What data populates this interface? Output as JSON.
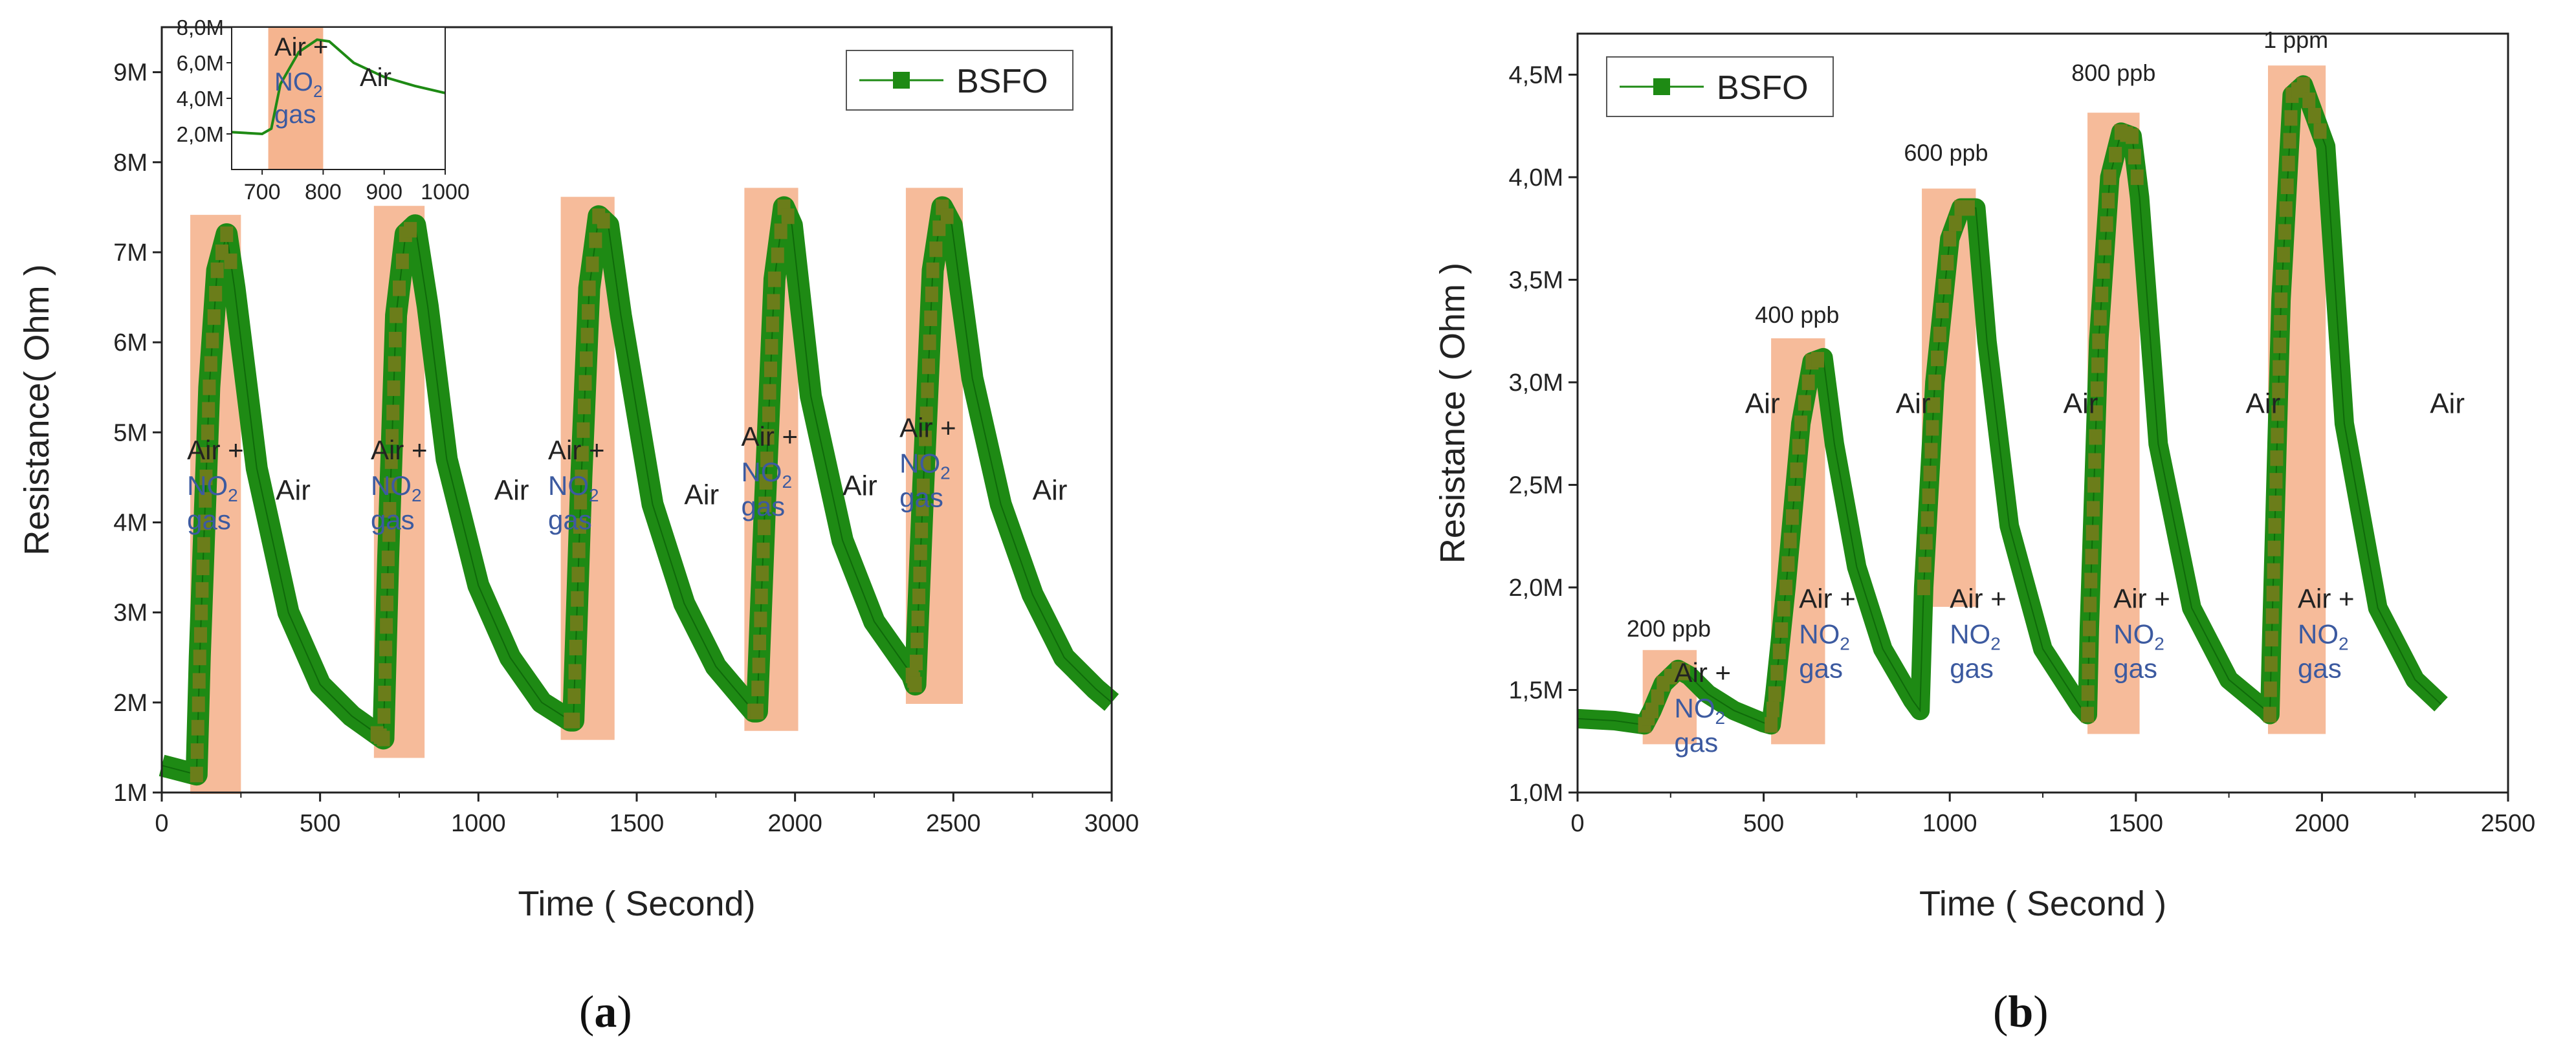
{
  "panels": [
    {
      "id": "a",
      "label_open": "(",
      "label_letter": "a",
      "label_close": ")",
      "chart_data": {
        "type": "line",
        "xlabel": "Time ( Second)",
        "ylabel": "Resistance( Ohm )",
        "xlim": [
          0,
          3000
        ],
        "ylim": [
          1000000,
          9500000
        ],
        "x_ticks": [
          0,
          500,
          1000,
          1500,
          2000,
          2500,
          3000
        ],
        "x_tick_labels": [
          "0",
          "500",
          "1000",
          "1500",
          "2000",
          "2500",
          "3000"
        ],
        "y_ticks": [
          1000000,
          2000000,
          3000000,
          4000000,
          5000000,
          6000000,
          7000000,
          8000000,
          9000000
        ],
        "y_tick_labels": [
          "1M",
          "2M",
          "3M",
          "4M",
          "5M",
          "6M",
          "7M",
          "8M",
          "9M"
        ],
        "legend": {
          "label": "BSFO",
          "position": "top-right"
        },
        "series": [
          {
            "name": "BSFO",
            "color": "#1e8a14",
            "points": [
              [
                0,
                1300000
              ],
              [
                110,
                1200000
              ],
              [
                120,
                2500000
              ],
              [
                150,
                5500000
              ],
              [
                175,
                6800000
              ],
              [
                205,
                7200000
              ],
              [
                230,
                6600000
              ],
              [
                300,
                4600000
              ],
              [
                400,
                3000000
              ],
              [
                500,
                2200000
              ],
              [
                600,
                1850000
              ],
              [
                680,
                1650000
              ],
              [
                700,
                1600000
              ],
              [
                715,
                3600000
              ],
              [
                740,
                6300000
              ],
              [
                770,
                7200000
              ],
              [
                800,
                7300000
              ],
              [
                840,
                6400000
              ],
              [
                900,
                4700000
              ],
              [
                1000,
                3300000
              ],
              [
                1100,
                2500000
              ],
              [
                1200,
                2000000
              ],
              [
                1290,
                1800000
              ],
              [
                1300,
                1800000
              ],
              [
                1325,
                4500000
              ],
              [
                1350,
                6600000
              ],
              [
                1380,
                7400000
              ],
              [
                1410,
                7300000
              ],
              [
                1450,
                6300000
              ],
              [
                1550,
                4200000
              ],
              [
                1650,
                3100000
              ],
              [
                1750,
                2400000
              ],
              [
                1870,
                1900000
              ],
              [
                1880,
                1900000
              ],
              [
                1905,
                4200000
              ],
              [
                1935,
                6700000
              ],
              [
                1965,
                7500000
              ],
              [
                1990,
                7300000
              ],
              [
                2050,
                5400000
              ],
              [
                2150,
                3800000
              ],
              [
                2250,
                2900000
              ],
              [
                2370,
                2300000
              ],
              [
                2380,
                2200000
              ],
              [
                2405,
                4400000
              ],
              [
                2435,
                6800000
              ],
              [
                2465,
                7500000
              ],
              [
                2495,
                7300000
              ],
              [
                2560,
                5600000
              ],
              [
                2650,
                4200000
              ],
              [
                2750,
                3200000
              ],
              [
                2850,
                2500000
              ],
              [
                2950,
                2150000
              ],
              [
                3000,
                2000000
              ]
            ]
          }
        ],
        "gas_windows": [
          [
            90,
            250
          ],
          [
            670,
            830
          ],
          [
            1260,
            1430
          ],
          [
            1840,
            2010
          ],
          [
            2350,
            2530
          ]
        ],
        "annotations": [
          {
            "text_top": "Air +",
            "formula_main": "NO",
            "formula_sub": "2",
            "text_bottom": "gas",
            "x": 80,
            "y": 4700000
          },
          {
            "text": "Air",
            "x": 360,
            "y": 4250000
          },
          {
            "text_top": "Air +",
            "formula_main": "NO",
            "formula_sub": "2",
            "text_bottom": "gas",
            "x": 660,
            "y": 4700000
          },
          {
            "text": "Air",
            "x": 1050,
            "y": 4250000
          },
          {
            "text_top": "Air +",
            "formula_main": "NO",
            "formula_sub": "2",
            "text_bottom": "gas",
            "x": 1220,
            "y": 4700000
          },
          {
            "text": "Air",
            "x": 1650,
            "y": 4200000
          },
          {
            "text_top": "Air +",
            "formula_main": "NO",
            "formula_sub": "2",
            "text_bottom": "gas",
            "x": 1830,
            "y": 4850000
          },
          {
            "text": "Air",
            "x": 2150,
            "y": 4300000
          },
          {
            "text_top": "Air +",
            "formula_main": "NO",
            "formula_sub": "2",
            "text_bottom": "gas",
            "x": 2330,
            "y": 4950000
          },
          {
            "text": "Air",
            "x": 2750,
            "y": 4250000
          }
        ],
        "inset": {
          "type": "line",
          "xlim": [
            650,
            1000
          ],
          "ylim": [
            0,
            8000000
          ],
          "x_ticks": [
            700,
            800,
            900,
            1000
          ],
          "x_tick_labels": [
            "700",
            "800",
            "900",
            "1000"
          ],
          "y_ticks": [
            2000000,
            4000000,
            6000000,
            8000000
          ],
          "y_tick_labels": [
            "2,0M",
            "4,0M",
            "6,0M",
            "8,0M"
          ],
          "gas_window": [
            710,
            800
          ],
          "points": [
            [
              650,
              2100000
            ],
            [
              700,
              2000000
            ],
            [
              715,
              2300000
            ],
            [
              730,
              4800000
            ],
            [
              760,
              6600000
            ],
            [
              790,
              7300000
            ],
            [
              810,
              7200000
            ],
            [
              850,
              6000000
            ],
            [
              900,
              5200000
            ],
            [
              950,
              4700000
            ],
            [
              1000,
              4300000
            ]
          ],
          "labels": [
            {
              "text_top": "Air +",
              "formula_main": "NO",
              "formula_sub": "2",
              "text_bottom": "gas",
              "x": 720,
              "y": 6400000
            },
            {
              "text": "Air",
              "x": 860,
              "y": 4700000
            }
          ]
        }
      }
    },
    {
      "id": "b",
      "label_open": "(",
      "label_letter": "b",
      "label_close": ")",
      "chart_data": {
        "type": "line",
        "xlabel": "Time ( Second )",
        "ylabel": "Resistance ( Ohm )",
        "xlim": [
          0,
          2500
        ],
        "ylim": [
          1000000,
          4700000
        ],
        "x_ticks": [
          0,
          500,
          1000,
          1500,
          2000,
          2500
        ],
        "x_tick_labels": [
          "0",
          "500",
          "1000",
          "1500",
          "2000",
          "2500"
        ],
        "y_ticks": [
          1000000,
          1500000,
          2000000,
          2500000,
          3000000,
          3500000,
          4000000,
          4500000
        ],
        "y_tick_labels": [
          "1,0M",
          "1,5M",
          "2,0M",
          "2,5M",
          "3,0M",
          "3,5M",
          "4,0M",
          "4,5M"
        ],
        "legend": {
          "label": "BSFO",
          "position": "top-left"
        },
        "series": [
          {
            "name": "BSFO",
            "color": "#1e8a14",
            "points": [
              [
                0,
                1360000
              ],
              [
                100,
                1350000
              ],
              [
                180,
                1330000
              ],
              [
                200,
                1400000
              ],
              [
                230,
                1530000
              ],
              [
                270,
                1600000
              ],
              [
                300,
                1570000
              ],
              [
                350,
                1480000
              ],
              [
                420,
                1400000
              ],
              [
                500,
                1340000
              ],
              [
                520,
                1330000
              ],
              [
                530,
                1480000
              ],
              [
                560,
                2000000
              ],
              [
                600,
                2800000
              ],
              [
                630,
                3100000
              ],
              [
                660,
                3120000
              ],
              [
                690,
                2700000
              ],
              [
                750,
                2100000
              ],
              [
                820,
                1700000
              ],
              [
                900,
                1450000
              ],
              [
                920,
                1400000
              ],
              [
                930,
                2000000
              ],
              [
                960,
                3000000
              ],
              [
                1000,
                3700000
              ],
              [
                1030,
                3850000
              ],
              [
                1070,
                3850000
              ],
              [
                1100,
                3200000
              ],
              [
                1160,
                2300000
              ],
              [
                1250,
                1700000
              ],
              [
                1350,
                1420000
              ],
              [
                1370,
                1380000
              ],
              [
                1375,
                1800000
              ],
              [
                1400,
                3200000
              ],
              [
                1430,
                4000000
              ],
              [
                1460,
                4220000
              ],
              [
                1490,
                4200000
              ],
              [
                1510,
                3900000
              ],
              [
                1560,
                2700000
              ],
              [
                1650,
                1900000
              ],
              [
                1750,
                1550000
              ],
              [
                1850,
                1400000
              ],
              [
                1860,
                1380000
              ],
              [
                1865,
                1750000
              ],
              [
                1890,
                3400000
              ],
              [
                1920,
                4400000
              ],
              [
                1950,
                4450000
              ],
              [
                1980,
                4300000
              ],
              [
                2010,
                4150000
              ],
              [
                2060,
                2800000
              ],
              [
                2150,
                1900000
              ],
              [
                2250,
                1550000
              ],
              [
                2320,
                1430000
              ]
            ]
          }
        ],
        "gas_windows": [
          [
            175,
            320
          ],
          [
            520,
            665
          ],
          [
            925,
            1070
          ],
          [
            1370,
            1510
          ],
          [
            1855,
            2010
          ]
        ],
        "concentration_labels": [
          {
            "text": "200 ppb",
            "x": 245,
            "y": 1760000
          },
          {
            "text": "400 ppb",
            "x": 590,
            "y": 3290000
          },
          {
            "text": "600 ppb",
            "x": 990,
            "y": 4080000
          },
          {
            "text": "800 ppb",
            "x": 1440,
            "y": 4470000
          },
          {
            "text": "1 ppm",
            "x": 1930,
            "y": 4630000
          }
        ],
        "annotations": [
          {
            "text": "Air",
            "x": 450,
            "y": 2850000
          },
          {
            "text": "Air",
            "x": 855,
            "y": 2850000
          },
          {
            "text": "Air",
            "x": 1305,
            "y": 2850000
          },
          {
            "text": "Air",
            "x": 1795,
            "y": 2850000
          },
          {
            "text": "Air",
            "x": 2290,
            "y": 2850000
          },
          {
            "text_top": "Air +",
            "formula_main": "NO",
            "formula_sub": "2",
            "text_bottom": "gas",
            "x": 260,
            "y": 1540000
          },
          {
            "text_top": "Air +",
            "formula_main": "NO",
            "formula_sub": "2",
            "text_bottom": "gas",
            "x": 595,
            "y": 1900000
          },
          {
            "text_top": "Air +",
            "formula_main": "NO",
            "formula_sub": "2",
            "text_bottom": "gas",
            "x": 1000,
            "y": 1900000
          },
          {
            "text_top": "Air +",
            "formula_main": "NO",
            "formula_sub": "2",
            "text_bottom": "gas",
            "x": 1440,
            "y": 1900000
          },
          {
            "text_top": "Air +",
            "formula_main": "NO",
            "formula_sub": "2",
            "text_bottom": "gas",
            "x": 1935,
            "y": 1900000
          }
        ]
      }
    }
  ],
  "colors": {
    "series": "#1e8a14",
    "gas_window": "#f5b48f",
    "gas_text": "#3c5aa0",
    "axis": "#222222"
  }
}
